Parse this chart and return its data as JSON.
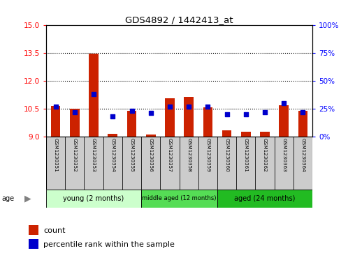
{
  "title": "GDS4892 / 1442413_at",
  "samples": [
    "GSM1230351",
    "GSM1230352",
    "GSM1230353",
    "GSM1230354",
    "GSM1230355",
    "GSM1230356",
    "GSM1230357",
    "GSM1230358",
    "GSM1230359",
    "GSM1230360",
    "GSM1230361",
    "GSM1230362",
    "GSM1230363",
    "GSM1230364"
  ],
  "counts": [
    10.65,
    10.5,
    13.47,
    9.15,
    10.4,
    9.1,
    11.05,
    11.15,
    10.58,
    9.35,
    9.28,
    9.28,
    10.7,
    10.4
  ],
  "percentiles": [
    27,
    22,
    38,
    18,
    23,
    21,
    27,
    27,
    27,
    20,
    20,
    22,
    30,
    22
  ],
  "ylim_left": [
    9,
    15
  ],
  "ylim_right": [
    0,
    100
  ],
  "yticks_left": [
    9,
    10.5,
    12,
    13.5,
    15
  ],
  "yticks_right": [
    0,
    25,
    50,
    75,
    100
  ],
  "groups": [
    {
      "label": "young (2 months)",
      "start": 0,
      "end": 5,
      "color": "#ccffcc"
    },
    {
      "label": "middle aged (12 months)",
      "start": 5,
      "end": 9,
      "color": "#55dd55"
    },
    {
      "label": "aged (24 months)",
      "start": 9,
      "end": 14,
      "color": "#22bb22"
    }
  ],
  "bar_color": "#cc2200",
  "dot_color": "#0000cc",
  "grid_color": "#000000",
  "bg_plot": "#ffffff",
  "bg_sample": "#cccccc",
  "count_label": "count",
  "percentile_label": "percentile rank within the sample",
  "age_label": "age"
}
